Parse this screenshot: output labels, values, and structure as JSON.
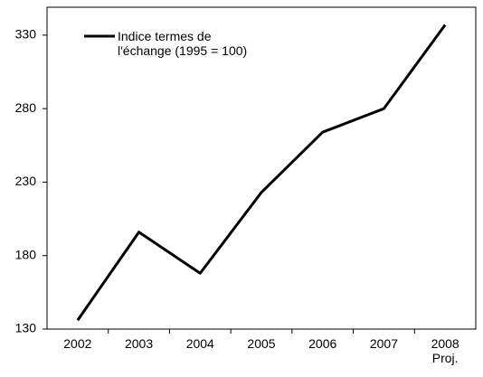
{
  "chart_data": {
    "type": "line",
    "categories": [
      "2002",
      "2003",
      "2004",
      "2005",
      "2006",
      "2007",
      "2008\nProj."
    ],
    "series": [
      {
        "name": "Indice termes de l'échange (1995 = 100)",
        "color": "#000000",
        "values": [
          136,
          196,
          168,
          223,
          264,
          280,
          337
        ]
      }
    ],
    "ylim": [
      130,
      349
    ],
    "yticks": [
      130,
      180,
      230,
      280,
      330
    ],
    "grid": false
  }
}
